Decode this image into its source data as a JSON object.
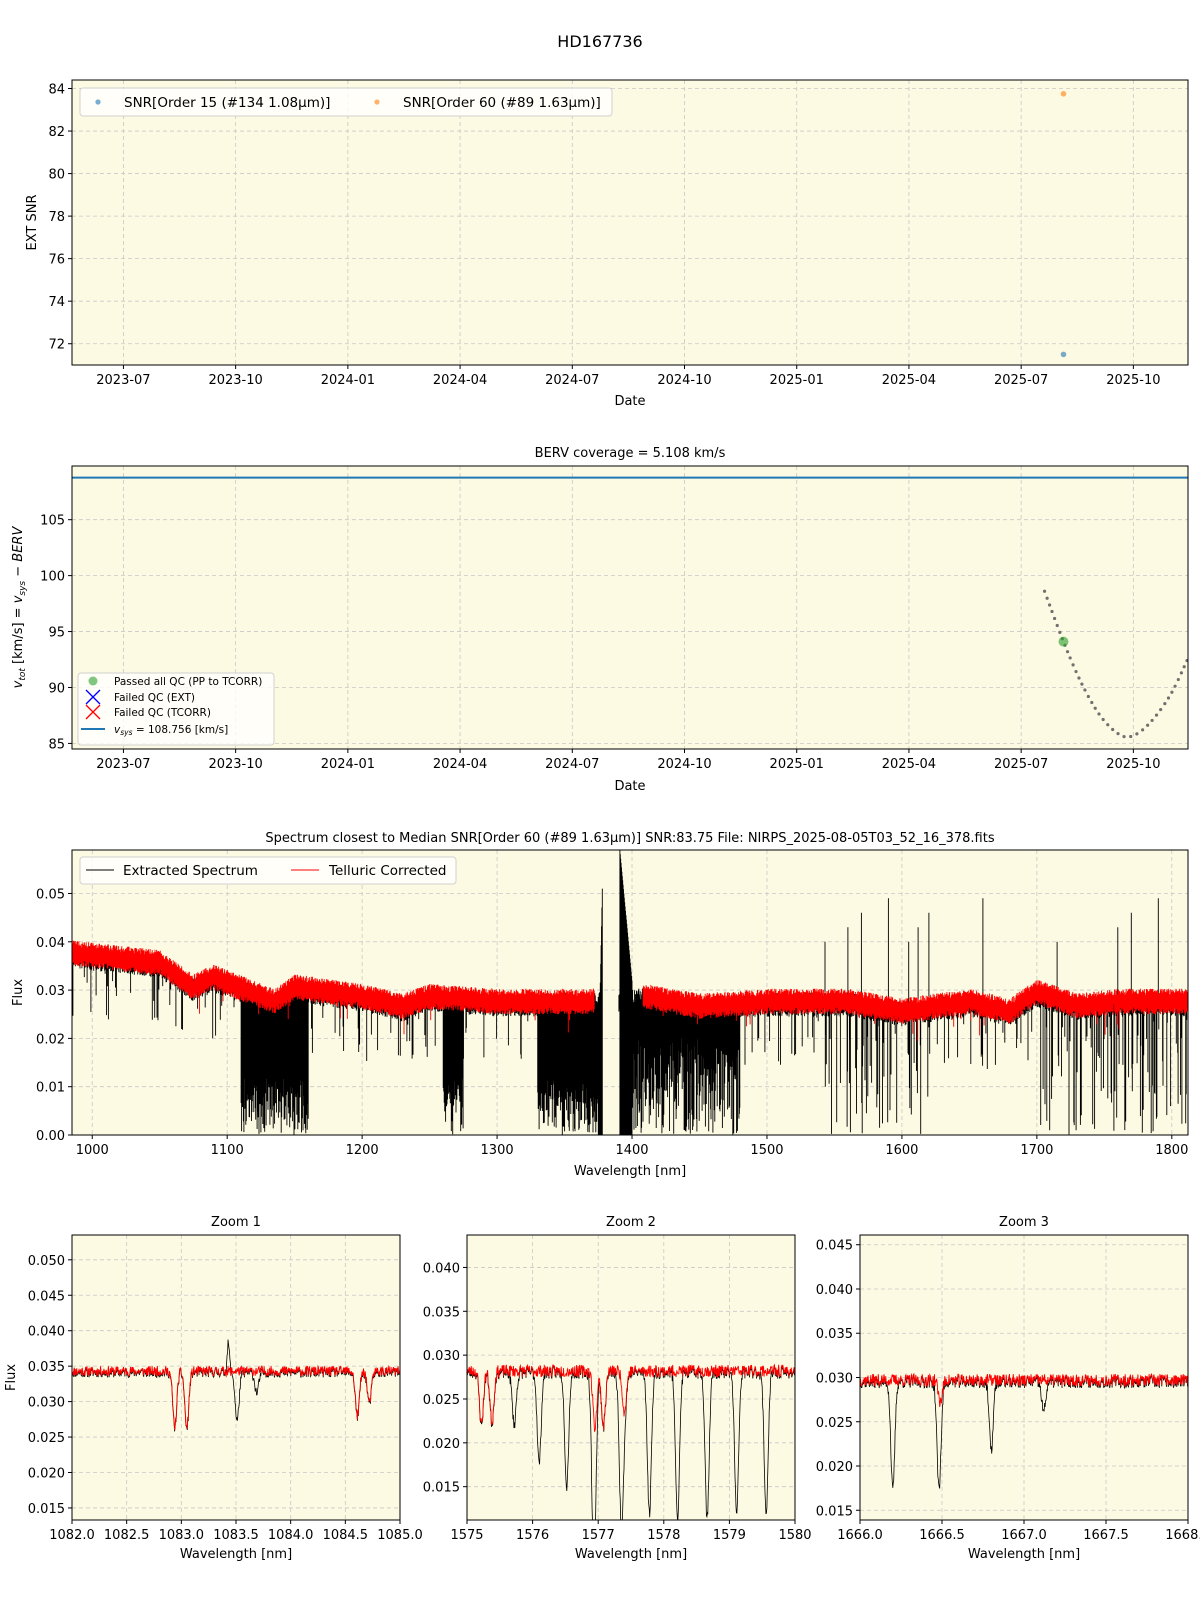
{
  "figure": {
    "suptitle": "HD167736",
    "background": "#ffffff",
    "axes_facecolor": "#fcfae2",
    "grid_color": "#c8c8c8"
  },
  "chart_data": [
    {
      "id": "snr",
      "type": "scatter",
      "title": "",
      "xlabel": "Date",
      "ylabel": "EXT SNR",
      "x_ticks": [
        "2023-07",
        "2023-10",
        "2024-01",
        "2024-04",
        "2024-07",
        "2024-10",
        "2025-01",
        "2025-04",
        "2025-07",
        "2025-10"
      ],
      "ylim": [
        71.0,
        84.4
      ],
      "y_ticks": [
        72,
        74,
        76,
        78,
        80,
        82,
        84
      ],
      "grid": true,
      "legend_position": "upper left",
      "series": [
        {
          "name": "SNR[Order 15 (#134 1.08μm)]",
          "color": "#1f77b4",
          "points": [
            {
              "x": "2025-08-05",
              "y": 71.5
            }
          ]
        },
        {
          "name": "SNR[Order 60 (#89 1.63μm)]",
          "color": "#ff7f0e",
          "points": [
            {
              "x": "2025-08-05",
              "y": 83.75
            }
          ]
        }
      ]
    },
    {
      "id": "berv",
      "type": "line",
      "title": "BERV coverage = 5.108 km/s",
      "xlabel": "Date",
      "ylabel": "v_tot [km/s] = v_sys − BERV",
      "x_ticks": [
        "2023-07",
        "2023-10",
        "2024-01",
        "2024-04",
        "2024-07",
        "2024-10",
        "2025-01",
        "2025-04",
        "2025-07",
        "2025-10"
      ],
      "ylim": [
        84.5,
        109.8
      ],
      "y_ticks": [
        85,
        90,
        95,
        100,
        105
      ],
      "grid": true,
      "legend_position": "lower left",
      "vsys": 108.756,
      "series": [
        {
          "name": "Passed all QC (PP to TCORR)",
          "color": "#2ca02c",
          "marker": "circle",
          "points": [
            {
              "x": "2025-08-05",
              "y": 94.1
            }
          ]
        },
        {
          "name": "Failed QC (EXT)",
          "color": "#0000ff",
          "marker": "x",
          "points": []
        },
        {
          "name": "Failed QC (TCORR)",
          "color": "#ff0000",
          "marker": "x",
          "points": []
        },
        {
          "name": "v_sys = 108.756 [km/s]",
          "color": "#1f77b4",
          "marker": "hline",
          "value": 108.756
        }
      ],
      "berv_curve": {
        "color": "#707070",
        "style": "dotted",
        "points": [
          {
            "x": "2025-07-20",
            "y": 98.6
          },
          {
            "x": "2025-08-05",
            "y": 94.1
          },
          {
            "x": "2025-08-20",
            "y": 90.3
          },
          {
            "x": "2025-09-05",
            "y": 87.4
          },
          {
            "x": "2025-09-20",
            "y": 85.8
          },
          {
            "x": "2025-10-01",
            "y": 85.7
          },
          {
            "x": "2025-10-15",
            "y": 86.9
          },
          {
            "x": "2025-11-01",
            "y": 89.4
          },
          {
            "x": "2025-11-15",
            "y": 92.6
          }
        ]
      }
    },
    {
      "id": "spectrum",
      "type": "line",
      "title": "Spectrum closest to Median SNR[Order 60 (#89 1.63μm)]     SNR:83.75     File: NIRPS_2025-08-05T03_52_16_378.fits",
      "xlabel": "Wavelength [nm]",
      "ylabel": "Flux",
      "xlim": [
        985,
        1812
      ],
      "ylim": [
        0.0,
        0.059
      ],
      "x_ticks": [
        1000,
        1100,
        1200,
        1300,
        1400,
        1500,
        1600,
        1700,
        1800
      ],
      "y_ticks": [
        "0.00",
        "0.01",
        "0.02",
        "0.03",
        "0.04",
        "0.05"
      ],
      "grid": true,
      "legend_position": "upper left",
      "series": [
        {
          "name": "Extracted Spectrum",
          "color": "#000000"
        },
        {
          "name": "Telluric Corrected",
          "color": "#ff0000"
        }
      ],
      "continuum_telluric_corrected": [
        [
          985,
          0.038
        ],
        [
          1050,
          0.036
        ],
        [
          1075,
          0.031
        ],
        [
          1090,
          0.033
        ],
        [
          1135,
          0.028
        ],
        [
          1150,
          0.031
        ],
        [
          1200,
          0.029
        ],
        [
          1230,
          0.027
        ],
        [
          1250,
          0.029
        ],
        [
          1300,
          0.028
        ],
        [
          1370,
          0.028
        ],
        [
          1410,
          0.029
        ],
        [
          1450,
          0.027
        ],
        [
          1500,
          0.028
        ],
        [
          1560,
          0.028
        ],
        [
          1600,
          0.026
        ],
        [
          1650,
          0.028
        ],
        [
          1680,
          0.026
        ],
        [
          1700,
          0.03
        ],
        [
          1730,
          0.027
        ],
        [
          1760,
          0.028
        ],
        [
          1812,
          0.028
        ]
      ],
      "deep_absorption_bands_nm": [
        [
          1110,
          1160
        ],
        [
          1260,
          1275
        ],
        [
          1330,
          1390
        ],
        [
          1400,
          1480
        ]
      ]
    },
    {
      "id": "zoom1",
      "type": "line",
      "title": "Zoom 1",
      "xlabel": "Wavelength [nm]",
      "ylabel": "Flux",
      "xlim": [
        1082.0,
        1085.0
      ],
      "ylim": [
        0.0133,
        0.0535
      ],
      "x_ticks": [
        "1082.0",
        "1082.5",
        "1083.0",
        "1083.5",
        "1084.0",
        "1084.5",
        "1085.0"
      ],
      "y_ticks": [
        "0.015",
        "0.020",
        "0.025",
        "0.030",
        "0.035",
        "0.040",
        "0.045",
        "0.050"
      ],
      "continuum": 0.0343,
      "lines_both": [
        {
          "x": 1082.94,
          "depth": 0.0265
        },
        {
          "x": 1083.05,
          "depth": 0.0263
        },
        {
          "x": 1084.61,
          "depth": 0.028
        },
        {
          "x": 1084.72,
          "depth": 0.0298
        }
      ],
      "lines_extracted_only": [
        {
          "x": 1083.51,
          "depth": 0.0275
        },
        {
          "x": 1083.69,
          "depth": 0.0315
        }
      ],
      "emission_extracted_only": [
        {
          "x": 1083.43,
          "peak": 0.0384
        }
      ]
    },
    {
      "id": "zoom2",
      "type": "line",
      "title": "Zoom 2",
      "xlabel": "Wavelength [nm]",
      "ylabel": "",
      "xlim": [
        1575,
        1580
      ],
      "ylim": [
        0.0112,
        0.0437
      ],
      "x_ticks": [
        "1575",
        "1576",
        "1577",
        "1578",
        "1579",
        "1580"
      ],
      "y_ticks": [
        "0.015",
        "0.020",
        "0.025",
        "0.030",
        "0.035",
        "0.040"
      ],
      "continuum": 0.0282,
      "lines_both": [
        {
          "x": 1575.22,
          "depth": 0.0222
        },
        {
          "x": 1575.38,
          "depth": 0.0224
        },
        {
          "x": 1576.95,
          "depth": 0.0218
        },
        {
          "x": 1577.08,
          "depth": 0.022
        },
        {
          "x": 1577.4,
          "depth": 0.0235
        }
      ],
      "lines_extracted_only": [
        {
          "x": 1575.72,
          "depth": 0.0223
        },
        {
          "x": 1576.1,
          "depth": 0.0178
        },
        {
          "x": 1576.52,
          "depth": 0.0153
        },
        {
          "x": 1576.93,
          "depth": 0.0112
        },
        {
          "x": 1577.35,
          "depth": 0.012
        },
        {
          "x": 1577.78,
          "depth": 0.012
        },
        {
          "x": 1578.21,
          "depth": 0.0116
        },
        {
          "x": 1578.66,
          "depth": 0.0116
        },
        {
          "x": 1579.11,
          "depth": 0.0119
        },
        {
          "x": 1579.56,
          "depth": 0.0123
        }
      ]
    },
    {
      "id": "zoom3",
      "type": "line",
      "title": "Zoom 3",
      "xlabel": "Wavelength [nm]",
      "ylabel": "",
      "xlim": [
        1666.0,
        1668.0
      ],
      "ylim": [
        0.0139,
        0.0461
      ],
      "x_ticks": [
        "1666.0",
        "1666.5",
        "1667.0",
        "1667.5",
        "1668.0"
      ],
      "y_ticks": [
        "0.015",
        "0.020",
        "0.025",
        "0.030",
        "0.035",
        "0.040",
        "0.045"
      ],
      "continuum": 0.0297,
      "lines_both": [
        {
          "x": 1666.49,
          "depth": 0.0272
        }
      ],
      "lines_extracted_only": [
        {
          "x": 1666.2,
          "depth": 0.0174
        },
        {
          "x": 1666.48,
          "depth": 0.0196
        },
        {
          "x": 1666.8,
          "depth": 0.0219
        },
        {
          "x": 1667.12,
          "depth": 0.0263
        }
      ]
    }
  ]
}
